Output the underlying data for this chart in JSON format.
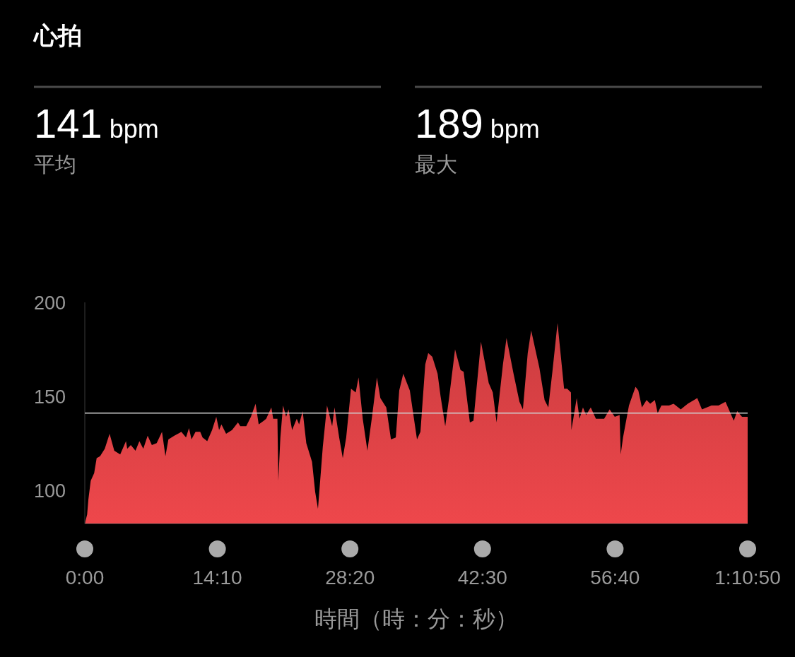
{
  "chart_data": {
    "type": "area",
    "title": "心拍",
    "annotations": [
      "141 bpm",
      "平均",
      "189 bpm",
      "最大"
    ],
    "xlabel": "時間（時：分：秒）",
    "xlim": [
      0,
      4250
    ],
    "xticks": [
      {
        "value": 0,
        "label": "0:00"
      },
      {
        "value": 850,
        "label": "14:10"
      },
      {
        "value": 1700,
        "label": "28:20"
      },
      {
        "value": 2550,
        "label": "42:30"
      },
      {
        "value": 3400,
        "label": "56:40"
      },
      {
        "value": 4250,
        "label": "1:10:50"
      }
    ],
    "ylim": [
      82,
      200
    ],
    "yticks": [
      100,
      150,
      200
    ],
    "grid": false,
    "ref_lines": [
      {
        "axis": "y",
        "value": 141,
        "color": "#d0d0d0"
      }
    ],
    "series": [
      {
        "color": "#ee474b",
        "x": [
          0,
          15,
          23,
          38,
          60,
          76,
          98,
          128,
          159,
          189,
          227,
          264,
          272,
          295,
          325,
          350,
          375,
          403,
          430,
          461,
          495,
          517,
          536,
          574,
          619,
          649,
          668,
          684,
          710,
          740,
          755,
          785,
          816,
          843,
          861,
          876,
          906,
          944,
          982,
          997,
          1035,
          1065,
          1095,
          1115,
          1148,
          1163,
          1196,
          1208,
          1235,
          1241,
          1254,
          1271,
          1291,
          1306,
          1329,
          1359,
          1374,
          1397,
          1420,
          1457,
          1477,
          1495,
          1526,
          1553,
          1586,
          1601,
          1631,
          1654,
          1676,
          1707,
          1737,
          1755,
          1782,
          1812,
          1843,
          1873,
          1895,
          1933,
          1963,
          1994,
          2016,
          2042,
          2084,
          2130,
          2152,
          2183,
          2202,
          2228,
          2262,
          2281,
          2311,
          2334,
          2374,
          2409,
          2429,
          2469,
          2492,
          2540,
          2590,
          2616,
          2640,
          2681,
          2704,
          2749,
          2787,
          2809,
          2840,
          2862,
          2915,
          2948,
          2972,
          2998,
          3031,
          3073,
          3093,
          3117,
          3120,
          3154,
          3172,
          3194,
          3214,
          3244,
          3277,
          3330,
          3365,
          3398,
          3429,
          3436,
          3451,
          3489,
          3531,
          3549,
          3572,
          3602,
          3625,
          3655,
          3673,
          3697,
          3746,
          3775,
          3821,
          3866,
          3927,
          3957,
          4018,
          4063,
          4108,
          4161,
          4183,
          4214,
          4250
        ],
        "values": [
          82,
          87,
          95,
          105,
          109,
          117,
          118,
          122,
          130,
          121,
          119,
          126,
          122,
          124,
          121,
          126,
          122,
          129,
          124,
          125,
          131,
          118,
          127,
          129,
          131,
          128,
          133,
          127,
          131,
          131,
          128,
          126,
          132,
          139,
          132,
          135,
          130,
          132,
          136,
          134,
          134,
          139,
          146,
          135,
          137,
          138,
          144,
          138,
          138,
          105,
          128,
          145,
          139,
          143,
          132,
          138,
          135,
          142,
          125,
          115,
          99,
          90,
          123,
          145,
          134,
          144,
          128,
          117,
          128,
          154,
          152,
          160,
          138,
          121,
          140,
          160,
          149,
          144,
          127,
          128,
          153,
          162,
          153,
          127,
          131,
          167,
          173,
          171,
          162,
          150,
          134,
          148,
          175,
          164,
          163,
          136,
          137,
          179,
          157,
          152,
          136,
          167,
          181,
          162,
          147,
          143,
          173,
          185,
          165,
          148,
          144,
          163,
          189,
          154,
          154,
          152,
          132,
          149,
          138,
          144,
          140,
          144,
          138,
          138,
          143,
          139,
          140,
          119,
          128,
          145,
          155,
          153,
          144,
          148,
          146,
          148,
          141,
          145,
          145,
          146,
          143,
          146,
          149,
          143,
          145,
          145,
          147,
          137,
          142,
          139,
          139
        ]
      }
    ]
  }
}
